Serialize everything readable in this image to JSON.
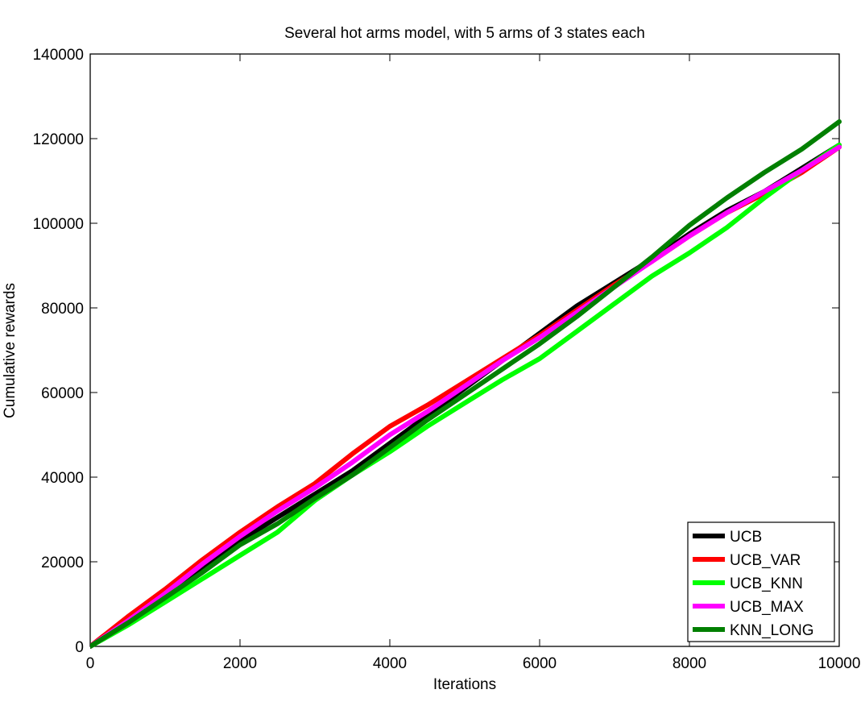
{
  "chart_data": {
    "type": "line",
    "title": "Several hot arms model, with 5 arms of 3 states each",
    "xlabel": "Iterations",
    "ylabel": "Cumulative rewards",
    "xlim": [
      0,
      10000
    ],
    "ylim": [
      0,
      140000
    ],
    "xticks": [
      0,
      2000,
      4000,
      6000,
      8000,
      10000
    ],
    "yticks": [
      0,
      20000,
      40000,
      60000,
      80000,
      100000,
      120000,
      140000
    ],
    "grid": false,
    "legend_position": "bottom-right",
    "series": [
      {
        "name": "UCB",
        "color": "#000000",
        "x": [
          0,
          500,
          1000,
          1500,
          2000,
          2500,
          3000,
          3500,
          4000,
          4500,
          5000,
          5500,
          6000,
          6500,
          7000,
          7500,
          8000,
          8500,
          9000,
          9500,
          10000
        ],
        "y": [
          0,
          6000,
          12000,
          18500,
          25000,
          30500,
          36000,
          41500,
          48000,
          54500,
          61000,
          67500,
          74000,
          80500,
          86000,
          91500,
          97500,
          103000,
          107500,
          113000,
          118500
        ]
      },
      {
        "name": "UCB_VAR",
        "color": "#ff0000",
        "x": [
          0,
          500,
          1000,
          1500,
          2000,
          2500,
          3000,
          3500,
          4000,
          4500,
          5000,
          5500,
          6000,
          6500,
          7000,
          7500,
          8000,
          8500,
          9000,
          9500,
          10000
        ],
        "y": [
          0,
          7000,
          13500,
          20500,
          27000,
          33000,
          38500,
          45500,
          52000,
          57000,
          62500,
          68000,
          73500,
          79500,
          85500,
          91000,
          97000,
          102500,
          107000,
          112000,
          118000
        ]
      },
      {
        "name": "UCB_KNN",
        "color": "#00ff00",
        "x": [
          0,
          500,
          1000,
          1500,
          2000,
          2500,
          3000,
          3500,
          4000,
          4500,
          5000,
          5500,
          6000,
          6500,
          7000,
          7500,
          8000,
          8500,
          9000,
          9500,
          10000
        ],
        "y": [
          0,
          5000,
          10500,
          16000,
          21500,
          27000,
          34500,
          40500,
          46000,
          52000,
          57500,
          63000,
          68000,
          74500,
          81000,
          87500,
          93000,
          99000,
          106000,
          112500,
          118500
        ]
      },
      {
        "name": "UCB_MAX",
        "color": "#ff00ff",
        "x": [
          0,
          500,
          1000,
          1500,
          2000,
          2500,
          3000,
          3500,
          4000,
          4500,
          5000,
          5500,
          6000,
          6500,
          7000,
          7500,
          8000,
          8500,
          9000,
          9500,
          10000
        ],
        "y": [
          0,
          6000,
          12500,
          19500,
          26000,
          32000,
          37500,
          43500,
          50000,
          55500,
          61500,
          67500,
          73000,
          79000,
          85000,
          91000,
          97000,
          102500,
          107500,
          112500,
          118000
        ]
      },
      {
        "name": "KNN_LONG",
        "color": "#007f00",
        "x": [
          0,
          500,
          1000,
          1500,
          2000,
          2500,
          3000,
          3500,
          4000,
          4500,
          5000,
          5500,
          6000,
          6500,
          7000,
          7500,
          8000,
          8500,
          9000,
          9500,
          10000
        ],
        "y": [
          0,
          5500,
          11500,
          17500,
          24000,
          29000,
          35000,
          40500,
          47000,
          53500,
          59500,
          65500,
          71500,
          78000,
          85000,
          92000,
          99500,
          106000,
          112000,
          117500,
          124000
        ]
      }
    ]
  }
}
